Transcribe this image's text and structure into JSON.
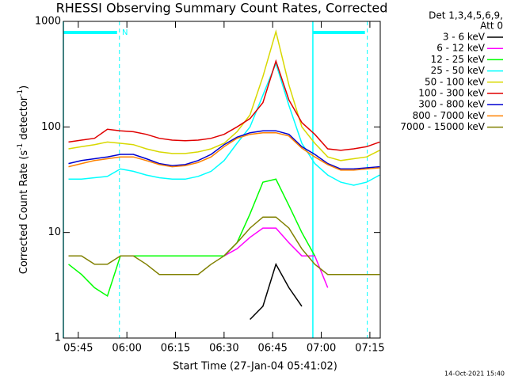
{
  "chart_data": {
    "type": "line",
    "title": "RHESSI Observing Summary Count Rates, Corrected",
    "ylabel": [
      "Corrected Count Rate (s",
      "-1",
      " detector",
      "-1",
      ")"
    ],
    "xlabel": "Start Time (27-Jan-04 05:41:02)",
    "legend_header": [
      "Det 1,3,4,5,6,9,",
      "Att 0"
    ],
    "footer": "14-Oct-2021 15:40",
    "log_y": true,
    "ylim": [
      1,
      1000
    ],
    "yticks": [
      1,
      10,
      100,
      1000
    ],
    "xlim": [
      340.4,
      438.2
    ],
    "xticks": [
      {
        "value": 345,
        "label": "05:45"
      },
      {
        "value": 360,
        "label": "06:00"
      },
      {
        "value": 375,
        "label": "06:15"
      },
      {
        "value": 390,
        "label": "06:30"
      },
      {
        "value": 405,
        "label": "06:45"
      },
      {
        "value": 420,
        "label": "07:00"
      },
      {
        "value": 435,
        "label": "07:15"
      }
    ],
    "night": {
      "label": "N",
      "color": "#00ffff",
      "intervals": [
        [
          340.4,
          357.7
        ],
        [
          417.4,
          434.2
        ]
      ]
    },
    "x": [
      342,
      346,
      350,
      354,
      358,
      362,
      366,
      370,
      374,
      378,
      382,
      386,
      390,
      394,
      398,
      402,
      406,
      410,
      414,
      418,
      422,
      426,
      430,
      434,
      438
    ],
    "series": [
      {
        "name": "3 - 6 keV",
        "color": "#000000",
        "values": [
          null,
          null,
          null,
          null,
          null,
          null,
          null,
          null,
          null,
          null,
          null,
          null,
          null,
          null,
          1.5,
          2,
          5,
          3,
          2,
          null,
          null,
          null,
          null,
          null,
          null
        ]
      },
      {
        "name": "6 - 12 keV",
        "color": "#ff00ff",
        "values": [
          null,
          null,
          null,
          null,
          6,
          6,
          6,
          6,
          6,
          6,
          6,
          6,
          6,
          7,
          9,
          11,
          11,
          8,
          6,
          6,
          3,
          null,
          null,
          null,
          null
        ]
      },
      {
        "name": "12 - 25 keV",
        "color": "#00ff00",
        "values": [
          5,
          4,
          3,
          2.5,
          6,
          6,
          6,
          6,
          6,
          6,
          6,
          6,
          6,
          8,
          15,
          30,
          32,
          18,
          10,
          6,
          null,
          null,
          null,
          null,
          null
        ]
      },
      {
        "name": "25 - 50 keV",
        "color": "#00ffff",
        "values": [
          32,
          32,
          33,
          34,
          40,
          38,
          35,
          33,
          32,
          32,
          34,
          38,
          48,
          70,
          100,
          200,
          400,
          160,
          70,
          45,
          35,
          30,
          28,
          30,
          35
        ]
      },
      {
        "name": "50 - 100 keV",
        "color": "#d8d800",
        "values": [
          62,
          65,
          68,
          72,
          70,
          68,
          62,
          58,
          56,
          56,
          58,
          62,
          70,
          90,
          130,
          300,
          800,
          250,
          100,
          70,
          52,
          48,
          50,
          52,
          60
        ]
      },
      {
        "name": "100 - 300 keV",
        "color": "#e00000",
        "values": [
          72,
          75,
          78,
          95,
          92,
          90,
          85,
          78,
          75,
          74,
          75,
          78,
          85,
          100,
          120,
          170,
          420,
          180,
          110,
          85,
          62,
          60,
          62,
          65,
          72
        ]
      },
      {
        "name": "300 - 800 keV",
        "color": "#0000d0",
        "values": [
          45,
          48,
          50,
          52,
          55,
          55,
          50,
          45,
          43,
          44,
          48,
          55,
          68,
          80,
          88,
          92,
          92,
          85,
          65,
          55,
          45,
          40,
          40,
          41,
          42
        ]
      },
      {
        "name": "800 - 7000 keV",
        "color": "#ff8000",
        "values": [
          42,
          45,
          48,
          50,
          52,
          52,
          48,
          44,
          42,
          43,
          46,
          52,
          65,
          78,
          85,
          88,
          88,
          82,
          63,
          52,
          44,
          39,
          39,
          40,
          41
        ]
      },
      {
        "name": "7000 - 15000 keV",
        "color": "#808000",
        "values": [
          6,
          6,
          5,
          5,
          6,
          6,
          5,
          4,
          4,
          4,
          4,
          5,
          6,
          8,
          11,
          14,
          14,
          11,
          7,
          5,
          4,
          4,
          4,
          4,
          4
        ]
      }
    ]
  }
}
